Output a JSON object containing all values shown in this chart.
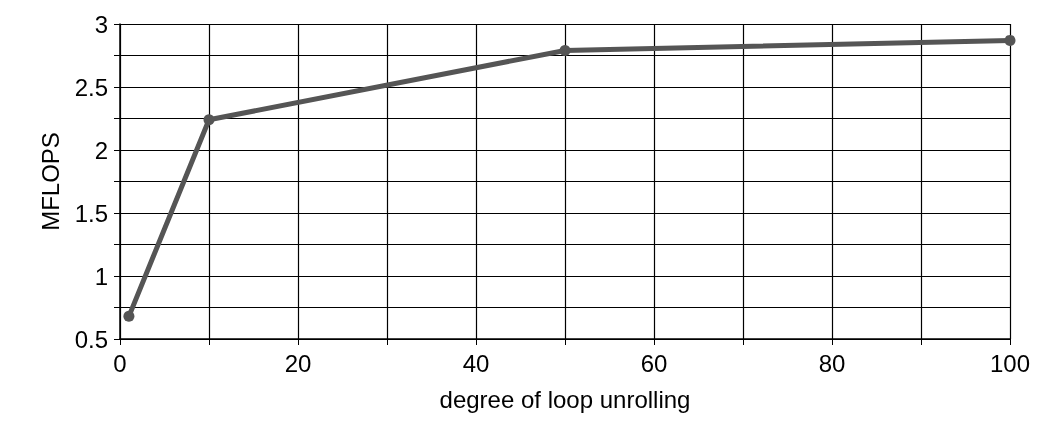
{
  "chart_data": {
    "type": "line",
    "xlabel": "degree of loop unrolling",
    "ylabel": "MFLOPS",
    "x": [
      1,
      10,
      50,
      100
    ],
    "series": [
      {
        "color": "#555555",
        "values": [
          0.68,
          2.24,
          2.79,
          2.87
        ]
      }
    ],
    "xlim": [
      0,
      100
    ],
    "xticks": [
      0,
      {
        "value": 10,
        "label": null
      },
      20,
      {
        "value": 30,
        "label": null
      },
      40,
      {
        "value": 50,
        "label": null
      },
      60,
      {
        "value": 70,
        "label": null
      },
      80,
      {
        "value": 90,
        "label": null
      },
      100
    ],
    "ylim": [
      0.5,
      3
    ],
    "yticks": [
      0.5,
      {
        "value": 0.75,
        "label": null
      },
      1,
      {
        "value": 1.25,
        "label": null
      },
      1.5,
      {
        "value": 1.75,
        "label": null
      },
      2,
      {
        "value": 2.25,
        "label": null
      },
      2.5,
      {
        "value": 2.75,
        "label": null
      },
      3
    ],
    "grid": true,
    "marker": "circle",
    "line_style": "solid"
  }
}
